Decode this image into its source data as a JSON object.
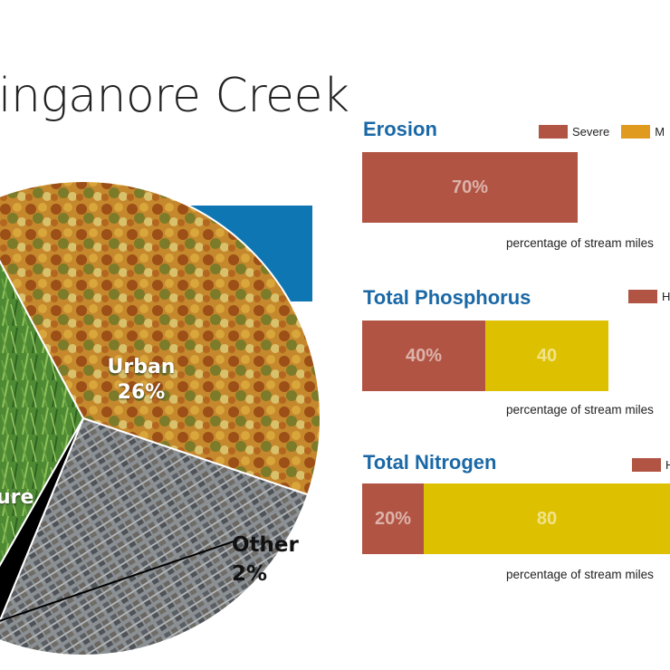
{
  "title": "inganore Creek",
  "colors": {
    "severe": "#b15443",
    "moderate": "#e09a1e",
    "yellow": "#ddc100",
    "band": "#0f76b4",
    "heading": "#1a68a6"
  },
  "chart_data": [
    {
      "type": "pie",
      "slices": [
        {
          "label": "",
          "value": 38,
          "color": "#c58a2c"
        },
        {
          "label": "Urban",
          "value": 26,
          "color": "#7b8287"
        },
        {
          "label": "Other",
          "value": 2,
          "color": "#000000"
        },
        {
          "label": "ure",
          "value": 34,
          "color": "#4e8a33"
        }
      ],
      "labels": {
        "urban_name": "Urban",
        "urban_value": "26%",
        "other_name": "Other",
        "other_value": "2%",
        "ag_name": "ure"
      }
    },
    {
      "type": "bar",
      "title": "Erosion",
      "legend": [
        "Severe",
        "M"
      ],
      "segments": [
        {
          "value": 70,
          "label": "70%",
          "color": "#b15443"
        }
      ],
      "caption": "percentage of stream miles"
    },
    {
      "type": "bar",
      "title": "Total Phosphorus",
      "legend": [
        "H"
      ],
      "segments": [
        {
          "value": 40,
          "label": "40%",
          "color": "#b15443"
        },
        {
          "value": 40,
          "label": "40",
          "color": "#ddc100"
        }
      ],
      "caption": "percentage of stream miles"
    },
    {
      "type": "bar",
      "title": "Total Nitrogen",
      "legend": [
        "H"
      ],
      "segments": [
        {
          "value": 20,
          "label": "20%",
          "color": "#b15443"
        },
        {
          "value": 80,
          "label": "80",
          "color": "#ddc100"
        }
      ],
      "caption": "percentage of stream miles"
    }
  ]
}
